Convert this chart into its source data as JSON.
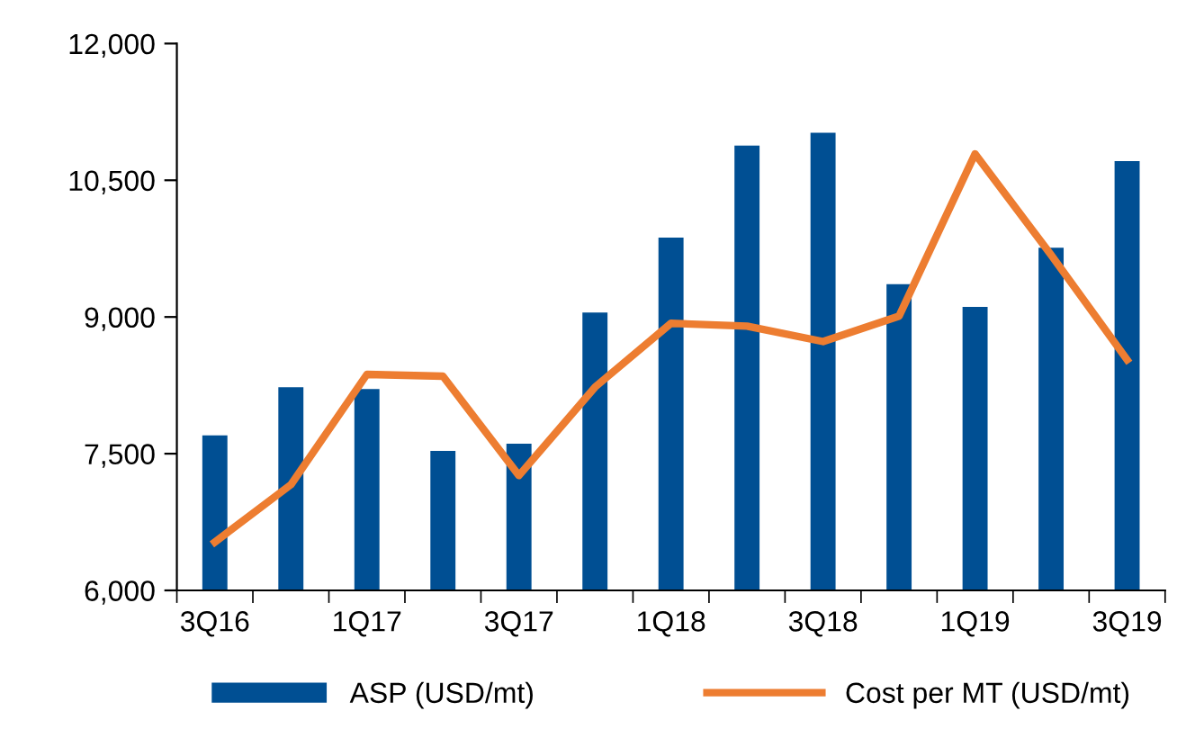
{
  "chart_data": {
    "type": "bar",
    "categories": [
      "3Q16",
      null,
      "1Q17",
      null,
      "3Q17",
      null,
      "1Q18",
      null,
      "3Q18",
      null,
      "1Q19",
      null,
      "3Q19"
    ],
    "series": [
      {
        "name": "ASP (USD/mt)",
        "color": "#004f93",
        "values": [
          7700,
          8230,
          8210,
          7530,
          7610,
          9050,
          9870,
          10880,
          11020,
          9360,
          9110,
          9760,
          10710
        ]
      },
      {
        "name": "Cost per MT (USD/mt)",
        "type": "line",
        "color": "#ed7d31",
        "values": [
          6530,
          7160,
          8370,
          8350,
          7260,
          8230,
          8930,
          8900,
          8730,
          9010,
          10790,
          9680,
          8530
        ]
      }
    ],
    "ylim": [
      6000,
      12000
    ],
    "yticks": [
      {
        "value": 6000,
        "label": "6,000"
      },
      {
        "value": 7500,
        "label": "7,500"
      },
      {
        "value": 9000,
        "label": "9,000"
      },
      {
        "value": 10500,
        "label": "10,500"
      },
      {
        "value": 12000,
        "label": "12,000"
      }
    ],
    "grid": false,
    "legend": "bottom",
    "marker": "none",
    "line_style": "solid"
  }
}
